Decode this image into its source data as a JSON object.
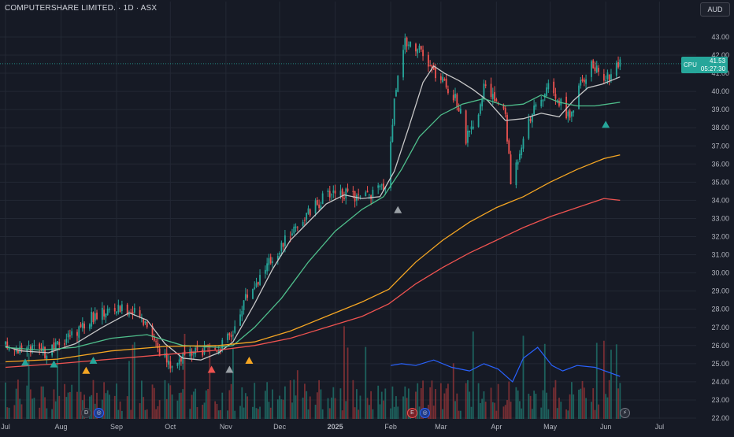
{
  "header": {
    "title": "COMPUTERSHARE LIMITED. · 1D · ASX",
    "currency": "AUD"
  },
  "price_tag": {
    "symbol": "CPU",
    "price": "41.53",
    "countdown": "05:27:30"
  },
  "colors": {
    "background": "#161a25",
    "up": "#26a69a",
    "down": "#ef5350",
    "volume_up": "#1f6f67",
    "volume_down": "#8a3236",
    "ma_fast": "#c8c8c8",
    "ma_mid": "#4fbf8c",
    "ma_slow": "#f5a623",
    "ma_long": "#ef5350",
    "overlay": "#2962ff",
    "grid": "#232834",
    "axis_text": "#b2b5be"
  },
  "bottom_events": [
    {
      "label": "D",
      "kind": "dividend"
    },
    {
      "label": "◎",
      "kind": "split"
    },
    {
      "label": "E",
      "kind": "earnings"
    },
    {
      "label": "◎",
      "kind": "split"
    },
    {
      "label": "⚡",
      "kind": "news"
    }
  ],
  "chart_data": {
    "type": "candlestick",
    "title": "COMPUTERSHARE LIMITED. · 1D · ASX",
    "currency": "AUD",
    "y_range": [
      22.0,
      43.5
    ],
    "y_ticks": [
      22,
      23,
      24,
      25,
      26,
      27,
      28,
      29,
      30,
      31,
      32,
      33,
      34,
      35,
      36,
      37,
      38,
      39,
      40,
      41,
      42,
      43
    ],
    "x_ticks": [
      {
        "label": "Jul",
        "day": 1
      },
      {
        "label": "Aug",
        "day": 32
      },
      {
        "label": "Sep",
        "day": 63
      },
      {
        "label": "Oct",
        "day": 93
      },
      {
        "label": "Nov",
        "day": 124
      },
      {
        "label": "Dec",
        "day": 154
      },
      {
        "label": "2025",
        "day": 185
      },
      {
        "label": "Feb",
        "day": 216
      },
      {
        "label": "Mar",
        "day": 244
      },
      {
        "label": "Apr",
        "day": 275
      },
      {
        "label": "May",
        "day": 305
      },
      {
        "label": "Jun",
        "day": 336
      },
      {
        "label": "Jul",
        "day": 366
      }
    ],
    "last_day": 344,
    "price_path": [
      [
        1,
        25.95
      ],
      [
        15,
        25.75
      ],
      [
        25,
        25.55
      ],
      [
        32,
        26.2
      ],
      [
        40,
        26.8
      ],
      [
        50,
        27.6
      ],
      [
        60,
        28.0
      ],
      [
        70,
        27.95
      ],
      [
        80,
        27.3
      ],
      [
        88,
        25.5
      ],
      [
        93,
        24.9
      ],
      [
        100,
        25.4
      ],
      [
        110,
        25.6
      ],
      [
        120,
        25.9
      ],
      [
        128,
        26.7
      ],
      [
        134,
        28.5
      ],
      [
        140,
        29.4
      ],
      [
        147,
        30.4
      ],
      [
        155,
        31.5
      ],
      [
        162,
        32.5
      ],
      [
        170,
        33.3
      ],
      [
        178,
        34.1
      ],
      [
        185,
        34.6
      ],
      [
        193,
        34.2
      ],
      [
        200,
        34.1
      ],
      [
        208,
        34.5
      ],
      [
        214,
        35.0
      ],
      [
        218,
        39.5
      ],
      [
        222,
        42.6
      ],
      [
        228,
        42.8
      ],
      [
        236,
        41.6
      ],
      [
        242,
        40.8
      ],
      [
        248,
        40.2
      ],
      [
        254,
        39.2
      ],
      [
        258,
        37.4
      ],
      [
        262,
        37.9
      ],
      [
        268,
        40.1
      ],
      [
        274,
        39.6
      ],
      [
        280,
        38.8
      ],
      [
        283,
        35.0
      ],
      [
        286,
        36.0
      ],
      [
        292,
        38.4
      ],
      [
        298,
        39.2
      ],
      [
        304,
        40.2
      ],
      [
        310,
        39.4
      ],
      [
        316,
        38.6
      ],
      [
        322,
        40.4
      ],
      [
        328,
        41.5
      ],
      [
        334,
        40.8
      ],
      [
        340,
        41.0
      ],
      [
        344,
        41.53
      ]
    ],
    "moving_averages": [
      {
        "points": [
          [
            1,
            25.95
          ],
          [
            10,
            25.7
          ],
          [
            25,
            25.6
          ],
          [
            40,
            26.1
          ],
          [
            55,
            27.0
          ],
          [
            70,
            27.8
          ],
          [
            80,
            27.4
          ],
          [
            90,
            26.1
          ],
          [
            100,
            25.3
          ],
          [
            110,
            25.2
          ],
          [
            120,
            25.6
          ],
          [
            128,
            26.2
          ],
          [
            140,
            28.3
          ],
          [
            150,
            30.2
          ],
          [
            160,
            31.8
          ],
          [
            170,
            32.8
          ],
          [
            180,
            33.8
          ],
          [
            190,
            34.3
          ],
          [
            200,
            34.1
          ],
          [
            210,
            34.2
          ],
          [
            218,
            35.6
          ],
          [
            226,
            38.0
          ],
          [
            234,
            40.5
          ],
          [
            240,
            41.4
          ],
          [
            246,
            41.0
          ],
          [
            254,
            40.6
          ],
          [
            262,
            40.1
          ],
          [
            270,
            39.5
          ],
          [
            280,
            38.4
          ],
          [
            290,
            38.5
          ],
          [
            300,
            38.8
          ],
          [
            310,
            38.6
          ],
          [
            318,
            39.5
          ],
          [
            326,
            40.2
          ],
          [
            334,
            40.4
          ],
          [
            344,
            40.8
          ]
        ]
      },
      {
        "points": [
          [
            1,
            25.9
          ],
          [
            20,
            25.75
          ],
          [
            40,
            25.9
          ],
          [
            60,
            26.4
          ],
          [
            80,
            26.6
          ],
          [
            100,
            26.0
          ],
          [
            120,
            25.9
          ],
          [
            128,
            26.0
          ],
          [
            140,
            27.0
          ],
          [
            155,
            28.6
          ],
          [
            170,
            30.6
          ],
          [
            185,
            32.3
          ],
          [
            200,
            33.5
          ],
          [
            212,
            34.2
          ],
          [
            222,
            35.7
          ],
          [
            232,
            37.5
          ],
          [
            244,
            38.7
          ],
          [
            256,
            39.3
          ],
          [
            268,
            39.6
          ],
          [
            280,
            39.2
          ],
          [
            290,
            39.3
          ],
          [
            300,
            39.8
          ],
          [
            310,
            39.4
          ],
          [
            320,
            39.2
          ],
          [
            330,
            39.2
          ],
          [
            344,
            39.4
          ]
        ]
      },
      {
        "points": [
          [
            1,
            25.1
          ],
          [
            30,
            25.25
          ],
          [
            60,
            25.7
          ],
          [
            90,
            25.95
          ],
          [
            120,
            26.0
          ],
          [
            140,
            26.2
          ],
          [
            160,
            26.8
          ],
          [
            180,
            27.6
          ],
          [
            200,
            28.4
          ],
          [
            215,
            29.1
          ],
          [
            230,
            30.6
          ],
          [
            245,
            31.8
          ],
          [
            260,
            32.8
          ],
          [
            275,
            33.6
          ],
          [
            290,
            34.2
          ],
          [
            305,
            35.0
          ],
          [
            320,
            35.7
          ],
          [
            335,
            36.3
          ],
          [
            344,
            36.5
          ]
        ]
      },
      {
        "points": [
          [
            1,
            24.8
          ],
          [
            30,
            25.0
          ],
          [
            60,
            25.25
          ],
          [
            90,
            25.5
          ],
          [
            120,
            25.75
          ],
          [
            140,
            26.0
          ],
          [
            160,
            26.4
          ],
          [
            180,
            27.0
          ],
          [
            200,
            27.6
          ],
          [
            215,
            28.3
          ],
          [
            230,
            29.4
          ],
          [
            245,
            30.3
          ],
          [
            260,
            31.1
          ],
          [
            275,
            31.8
          ],
          [
            290,
            32.5
          ],
          [
            305,
            33.1
          ],
          [
            320,
            33.6
          ],
          [
            335,
            34.1
          ],
          [
            344,
            34.0
          ]
        ]
      }
    ],
    "overlay_series": {
      "points": [
        [
          216,
          24.9
        ],
        [
          222,
          25.0
        ],
        [
          230,
          24.9
        ],
        [
          240,
          25.2
        ],
        [
          250,
          24.8
        ],
        [
          260,
          24.6
        ],
        [
          268,
          25.0
        ],
        [
          276,
          24.7
        ],
        [
          284,
          24.0
        ],
        [
          290,
          25.3
        ],
        [
          298,
          25.9
        ],
        [
          306,
          24.9
        ],
        [
          312,
          24.6
        ],
        [
          320,
          24.9
        ],
        [
          330,
          24.8
        ],
        [
          344,
          24.3
        ]
      ]
    },
    "signals": [
      {
        "day": 12,
        "price": 25.5,
        "dir": "up",
        "color": "#26a69a"
      },
      {
        "day": 28,
        "price": 25.4,
        "dir": "up",
        "color": "#26a69a"
      },
      {
        "day": 46,
        "price": 25.05,
        "dir": "up",
        "color": "#f5a623"
      },
      {
        "day": 50,
        "price": 25.6,
        "dir": "up",
        "color": "#26a69a"
      },
      {
        "day": 116,
        "price": 25.1,
        "dir": "up",
        "color": "#ef5350"
      },
      {
        "day": 126,
        "price": 25.1,
        "dir": "up",
        "color": "#9aa0a6"
      },
      {
        "day": 137,
        "price": 25.6,
        "dir": "up",
        "color": "#f5a623"
      },
      {
        "day": 220,
        "price": 33.9,
        "dir": "up",
        "color": "#9aa0a6"
      },
      {
        "day": 336,
        "price": 38.6,
        "dir": "up",
        "color": "#26a69a"
      }
    ]
  }
}
